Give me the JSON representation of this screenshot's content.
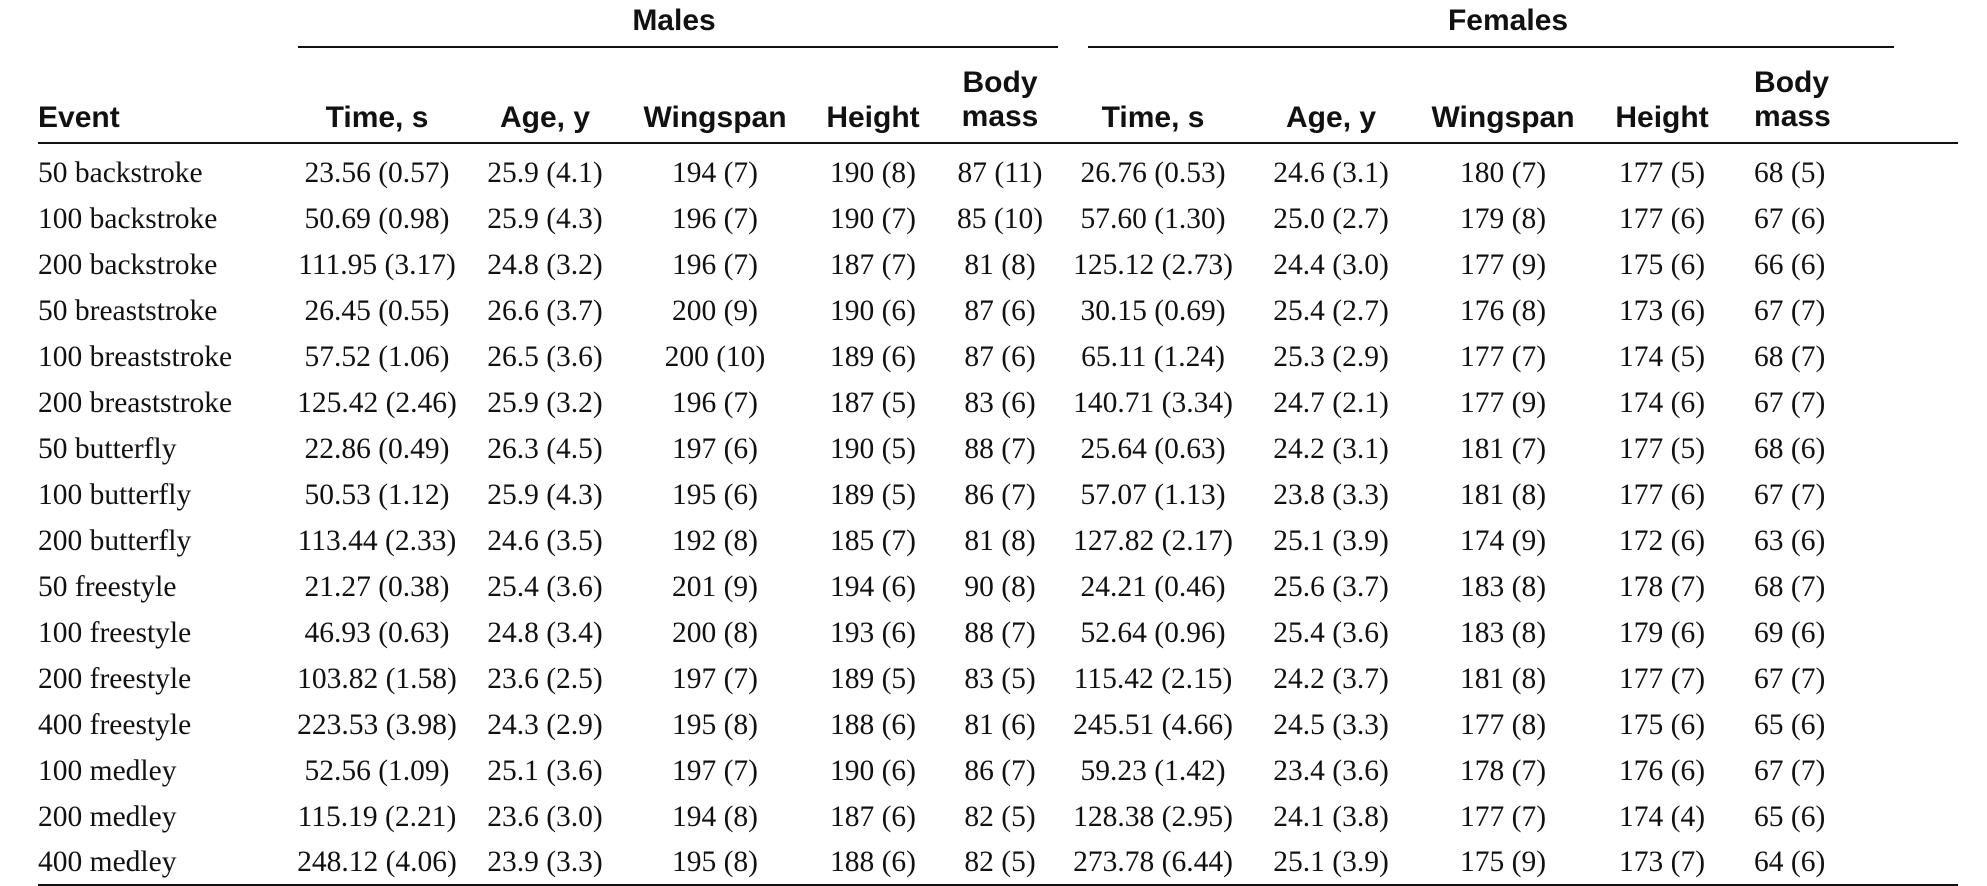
{
  "group_headers": {
    "males": "Males",
    "females": "Females"
  },
  "columns": {
    "event": "Event",
    "time": "Time, s",
    "age": "Age, y",
    "wingspan": "Wingspan",
    "height": "Height",
    "body_mass_line1": "Body",
    "body_mass_line2": "mass"
  },
  "rows": [
    {
      "event": "50 backstroke",
      "m_time": "23.56 (0.57)",
      "m_age": "25.9 (4.1)",
      "m_wing": "194 (7)",
      "m_height": "190 (8)",
      "m_mass": "87 (11)",
      "f_time": "26.76 (0.53)",
      "f_age": "24.6 (3.1)",
      "f_wing": "180 (7)",
      "f_height": "177 (5)",
      "f_mass": "68 (5)"
    },
    {
      "event": "100 backstroke",
      "m_time": "50.69 (0.98)",
      "m_age": "25.9 (4.3)",
      "m_wing": "196 (7)",
      "m_height": "190 (7)",
      "m_mass": "85 (10)",
      "f_time": "57.60 (1.30)",
      "f_age": "25.0 (2.7)",
      "f_wing": "179 (8)",
      "f_height": "177 (6)",
      "f_mass": "67 (6)"
    },
    {
      "event": "200 backstroke",
      "m_time": "111.95 (3.17)",
      "m_age": "24.8 (3.2)",
      "m_wing": "196 (7)",
      "m_height": "187 (7)",
      "m_mass": "81 (8)",
      "f_time": "125.12 (2.73)",
      "f_age": "24.4 (3.0)",
      "f_wing": "177 (9)",
      "f_height": "175 (6)",
      "f_mass": "66 (6)"
    },
    {
      "event": "50 breaststroke",
      "m_time": "26.45 (0.55)",
      "m_age": "26.6 (3.7)",
      "m_wing": "200 (9)",
      "m_height": "190 (6)",
      "m_mass": "87 (6)",
      "f_time": "30.15 (0.69)",
      "f_age": "25.4 (2.7)",
      "f_wing": "176 (8)",
      "f_height": "173 (6)",
      "f_mass": "67 (7)"
    },
    {
      "event": "100 breaststroke",
      "m_time": "57.52 (1.06)",
      "m_age": "26.5 (3.6)",
      "m_wing": "200 (10)",
      "m_height": "189 (6)",
      "m_mass": "87 (6)",
      "f_time": "65.11 (1.24)",
      "f_age": "25.3 (2.9)",
      "f_wing": "177 (7)",
      "f_height": "174 (5)",
      "f_mass": "68 (7)"
    },
    {
      "event": "200 breaststroke",
      "m_time": "125.42 (2.46)",
      "m_age": "25.9 (3.2)",
      "m_wing": "196 (7)",
      "m_height": "187 (5)",
      "m_mass": "83 (6)",
      "f_time": "140.71 (3.34)",
      "f_age": "24.7 (2.1)",
      "f_wing": "177 (9)",
      "f_height": "174 (6)",
      "f_mass": "67 (7)"
    },
    {
      "event": "50 butterfly",
      "m_time": "22.86 (0.49)",
      "m_age": "26.3 (4.5)",
      "m_wing": "197 (6)",
      "m_height": "190 (5)",
      "m_mass": "88 (7)",
      "f_time": "25.64 (0.63)",
      "f_age": "24.2 (3.1)",
      "f_wing": "181 (7)",
      "f_height": "177 (5)",
      "f_mass": "68 (6)"
    },
    {
      "event": "100 butterfly",
      "m_time": "50.53 (1.12)",
      "m_age": "25.9 (4.3)",
      "m_wing": "195 (6)",
      "m_height": "189 (5)",
      "m_mass": "86 (7)",
      "f_time": "57.07 (1.13)",
      "f_age": "23.8 (3.3)",
      "f_wing": "181 (8)",
      "f_height": "177 (6)",
      "f_mass": "67 (7)"
    },
    {
      "event": "200 butterfly",
      "m_time": "113.44 (2.33)",
      "m_age": "24.6 (3.5)",
      "m_wing": "192 (8)",
      "m_height": "185 (7)",
      "m_mass": "81 (8)",
      "f_time": "127.82 (2.17)",
      "f_age": "25.1 (3.9)",
      "f_wing": "174 (9)",
      "f_height": "172 (6)",
      "f_mass": "63 (6)"
    },
    {
      "event": "50 freestyle",
      "m_time": "21.27 (0.38)",
      "m_age": "25.4 (3.6)",
      "m_wing": "201 (9)",
      "m_height": "194 (6)",
      "m_mass": "90 (8)",
      "f_time": "24.21 (0.46)",
      "f_age": "25.6 (3.7)",
      "f_wing": "183 (8)",
      "f_height": "178 (7)",
      "f_mass": "68 (7)"
    },
    {
      "event": "100 freestyle",
      "m_time": "46.93 (0.63)",
      "m_age": "24.8 (3.4)",
      "m_wing": "200 (8)",
      "m_height": "193 (6)",
      "m_mass": "88 (7)",
      "f_time": "52.64 (0.96)",
      "f_age": "25.4 (3.6)",
      "f_wing": "183 (8)",
      "f_height": "179 (6)",
      "f_mass": "69 (6)"
    },
    {
      "event": "200 freestyle",
      "m_time": "103.82 (1.58)",
      "m_age": "23.6 (2.5)",
      "m_wing": "197 (7)",
      "m_height": "189 (5)",
      "m_mass": "83 (5)",
      "f_time": "115.42 (2.15)",
      "f_age": "24.2 (3.7)",
      "f_wing": "181 (8)",
      "f_height": "177 (7)",
      "f_mass": "67 (7)"
    },
    {
      "event": "400 freestyle",
      "m_time": "223.53 (3.98)",
      "m_age": "24.3 (2.9)",
      "m_wing": "195 (8)",
      "m_height": "188 (6)",
      "m_mass": "81 (6)",
      "f_time": "245.51 (4.66)",
      "f_age": "24.5 (3.3)",
      "f_wing": "177 (8)",
      "f_height": "175 (6)",
      "f_mass": "65 (6)"
    },
    {
      "event": "100 medley",
      "m_time": "52.56 (1.09)",
      "m_age": "25.1 (3.6)",
      "m_wing": "197 (7)",
      "m_height": "190 (6)",
      "m_mass": "86 (7)",
      "f_time": "59.23 (1.42)",
      "f_age": "23.4 (3.6)",
      "f_wing": "178 (7)",
      "f_height": "176 (6)",
      "f_mass": "67 (7)"
    },
    {
      "event": "200 medley",
      "m_time": "115.19 (2.21)",
      "m_age": "23.6 (3.0)",
      "m_wing": "194 (8)",
      "m_height": "187 (6)",
      "m_mass": "82 (5)",
      "f_time": "128.38 (2.95)",
      "f_age": "24.1 (3.8)",
      "f_wing": "177 (7)",
      "f_height": "174 (4)",
      "f_mass": "65 (6)"
    },
    {
      "event": "400 medley",
      "m_time": "248.12 (4.06)",
      "m_age": "23.9 (3.3)",
      "m_wing": "195 (8)",
      "m_height": "188 (6)",
      "m_mass": "82 (5)",
      "f_time": "273.78 (6.44)",
      "f_age": "25.1 (3.9)",
      "f_wing": "175 (9)",
      "f_height": "173 (7)",
      "f_mass": "64 (6)"
    }
  ]
}
